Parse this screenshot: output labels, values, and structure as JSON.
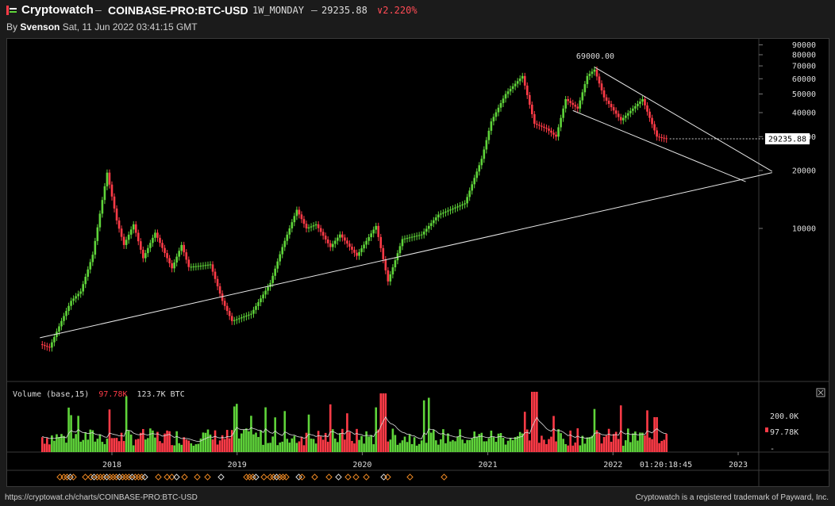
{
  "header": {
    "brand": "Cryptowatch",
    "dash": "–",
    "pair": "COINBASE-PRO:BTC-USD",
    "timeframe": "1W_MONDAY",
    "dash2": "–",
    "price": "29235.88",
    "change": "∨2.220%",
    "byline_prefix": "By",
    "author": "Svenson",
    "date": "Sat, 11 Jun 2022 03:41:15 GMT"
  },
  "colors": {
    "background": "#000000",
    "up": "#5fd43a",
    "down": "#ff3b47",
    "line": "#e8e8e8",
    "marker": "#f08a24"
  },
  "volume_panel": {
    "title": "Volume (base,15)",
    "value_red": "97.78K",
    "value_white": "123.7K BTC",
    "axis_labels": [
      "200.0K",
      "97.78K",
      "-"
    ]
  },
  "chart_data": {
    "type": "candlestick",
    "title": "COINBASE-PRO:BTC-USD 1W_MONDAY",
    "y_scale": "log",
    "y_ticks": [
      90000,
      80000,
      70000,
      60000,
      50000,
      40000,
      30000,
      20000,
      10000
    ],
    "y_tick_labels": [
      "90000",
      "80000",
      "70000",
      "60000",
      "50000",
      "40000",
      "30000",
      "20000",
      "10000"
    ],
    "x_tick_labels": [
      "2018",
      "2019",
      "2020",
      "2021",
      "2022",
      "2023"
    ],
    "x_countdown_label": "01:20:18:45",
    "price_label": "29235.88",
    "peak_label": "69000.00",
    "close_series": [
      [
        "2017-06-05",
        2500
      ],
      [
        "2017-07-03",
        2400
      ],
      [
        "2017-08-07",
        3300
      ],
      [
        "2017-09-04",
        4200
      ],
      [
        "2017-10-02",
        4700
      ],
      [
        "2017-11-06",
        7300
      ],
      [
        "2017-12-18",
        19500
      ],
      [
        "2018-01-15",
        11000
      ],
      [
        "2018-02-05",
        8200
      ],
      [
        "2018-03-05",
        10500
      ],
      [
        "2018-04-02",
        7000
      ],
      [
        "2018-05-07",
        9500
      ],
      [
        "2018-06-25",
        6200
      ],
      [
        "2018-07-23",
        8200
      ],
      [
        "2018-08-13",
        6300
      ],
      [
        "2018-09-17",
        6400
      ],
      [
        "2018-10-15",
        6500
      ],
      [
        "2018-11-19",
        4200
      ],
      [
        "2018-12-17",
        3300
      ],
      [
        "2019-02-11",
        3600
      ],
      [
        "2019-04-08",
        5200
      ],
      [
        "2019-05-13",
        8000
      ],
      [
        "2019-06-24",
        12500
      ],
      [
        "2019-07-22",
        10000
      ],
      [
        "2019-08-19",
        10500
      ],
      [
        "2019-09-30",
        8000
      ],
      [
        "2019-10-28",
        9300
      ],
      [
        "2019-12-16",
        7200
      ],
      [
        "2020-02-10",
        10300
      ],
      [
        "2020-03-16",
        5300
      ],
      [
        "2020-04-27",
        8800
      ],
      [
        "2020-06-22",
        9300
      ],
      [
        "2020-08-10",
        11800
      ],
      [
        "2020-10-26",
        13500
      ],
      [
        "2020-12-14",
        23000
      ],
      [
        "2021-01-11",
        36000
      ],
      [
        "2021-02-22",
        50000
      ],
      [
        "2021-04-12",
        62000
      ],
      [
        "2021-05-17",
        35000
      ],
      [
        "2021-06-21",
        33000
      ],
      [
        "2021-07-19",
        30000
      ],
      [
        "2021-08-16",
        47000
      ],
      [
        "2021-09-20",
        42000
      ],
      [
        "2021-10-18",
        62000
      ],
      [
        "2021-11-08",
        67000
      ],
      [
        "2021-12-06",
        48000
      ],
      [
        "2022-01-24",
        36500
      ],
      [
        "2022-03-28",
        47000
      ],
      [
        "2022-05-09",
        30000
      ],
      [
        "2022-06-06",
        29235.88
      ]
    ],
    "trendlines": [
      {
        "from": [
          "2017-06-05",
          2700
        ],
        "to": [
          "2023-04-10",
          19500
        ]
      },
      {
        "from": [
          "2021-11-08",
          69000
        ],
        "to": [
          "2023-04-10",
          19800
        ]
      },
      {
        "from": [
          "2021-09-06",
          41000
        ],
        "to": [
          "2023-01-23",
          17500
        ]
      }
    ]
  }
}
